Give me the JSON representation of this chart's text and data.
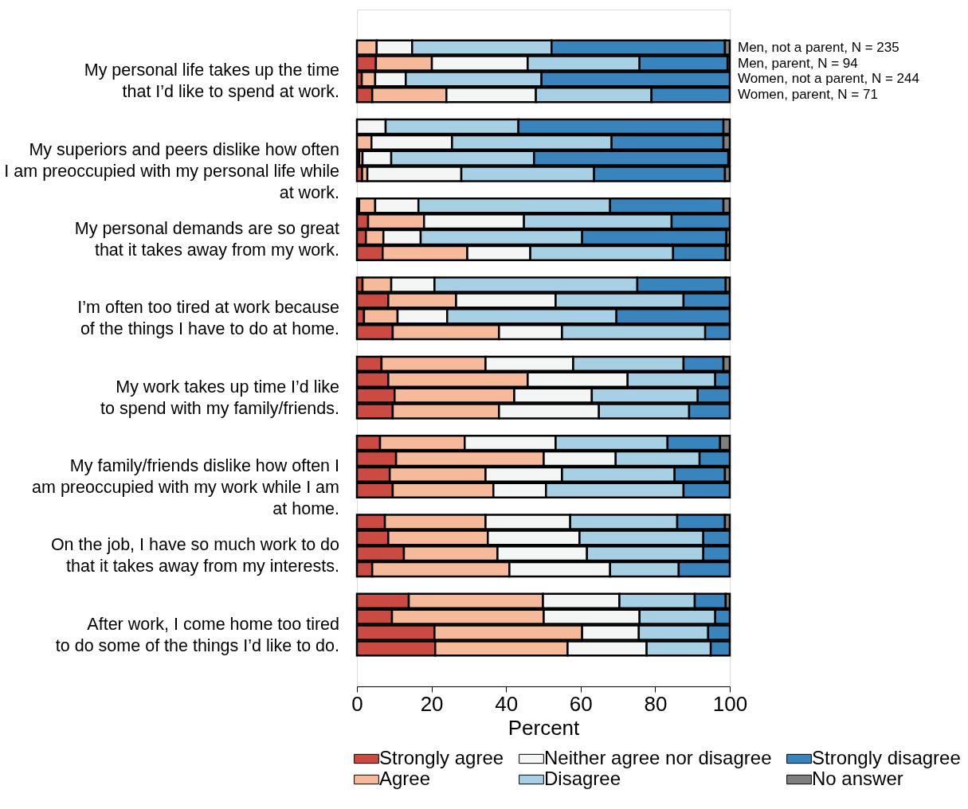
{
  "chart_data": {
    "type": "bar",
    "orientation": "horizontal",
    "stacked": true,
    "categories": [
      null,
      null,
      null,
      null,
      null,
      null,
      null,
      null,
      null,
      null,
      null,
      null,
      null,
      null,
      null,
      null,
      null,
      null,
      null,
      null,
      null,
      null,
      null,
      null,
      null,
      null,
      null,
      null,
      null,
      null,
      null,
      null
    ],
    "series": [
      {
        "name": "Strongly agree",
        "color": "#cb4a42",
        "values": [
          0,
          5.1,
          1.3,
          4.1,
          0,
          0,
          0.6,
          1.4,
          0.6,
          3,
          2.4,
          6.9,
          1.5,
          8.4,
          1.9,
          9.6,
          6.6,
          8.4,
          10.1,
          9.6,
          6.2,
          10.5,
          8.8,
          9.6,
          7.5,
          8.4,
          12.6,
          4.1,
          13.9,
          9.4,
          20.8,
          21
        ]
      },
      {
        "name": "Agree",
        "color": "#f6b99a",
        "values": [
          5.3,
          15,
          3.6,
          19.9,
          0,
          3.9,
          0.9,
          1.4,
          4.3,
          15,
          4.7,
          22.7,
          7.7,
          18.2,
          9,
          28.5,
          27.9,
          37.4,
          32.1,
          28.5,
          22.7,
          39.6,
          25.7,
          27,
          27,
          26.7,
          25.1,
          36.8,
          36,
          40.7,
          39.6,
          35.5
        ]
      },
      {
        "name": "Neither agree nor disagree",
        "color": "#f4f6f5",
        "values": [
          9.5,
          25.7,
          8.2,
          24,
          7.7,
          21.6,
          7.7,
          25.2,
          11.6,
          26.8,
          10,
          16.9,
          11.6,
          26.7,
          13.3,
          16.9,
          23.5,
          26.8,
          20.8,
          26.8,
          24.4,
          19.3,
          20.5,
          14.1,
          22.7,
          24.6,
          24,
          27,
          20.5,
          25.7,
          15.2,
          21.2
        ]
      },
      {
        "name": "Disagree",
        "color": "#a8d0e4",
        "values": [
          37.4,
          30,
          36.4,
          31,
          35.6,
          42.8,
          38.3,
          35.6,
          51.4,
          39.6,
          43.3,
          38.3,
          54.4,
          34.3,
          45.4,
          38.4,
          29.6,
          23.5,
          28.4,
          24.2,
          30,
          22.5,
          30.2,
          36.9,
          28.7,
          33.2,
          31.2,
          18.4,
          20.2,
          20.3,
          18.6,
          17.2
        ]
      },
      {
        "name": "Strongly disagree",
        "color": "#3a84bd",
        "values": [
          46.5,
          23.6,
          50.5,
          21,
          55,
          30,
          52.1,
          35.1,
          30.4,
          15.6,
          38.7,
          14.1,
          23.7,
          12.4,
          30.4,
          6.6,
          10.7,
          3.9,
          8.6,
          10.9,
          14.1,
          8.1,
          13.5,
          12.4,
          12.8,
          7.1,
          7.1,
          13.7,
          8.3,
          3.9,
          5.8,
          5.1
        ]
      },
      {
        "name": "No answer",
        "color": "#7f7f7f",
        "values": [
          1.3,
          0.6,
          0,
          0,
          1.7,
          1.7,
          0.4,
          1.3,
          1.7,
          0,
          0.9,
          1.1,
          1.1,
          0,
          0,
          0,
          1.7,
          0,
          0,
          0,
          2.6,
          0,
          1.3,
          0,
          1.3,
          0,
          0,
          0,
          1.1,
          0,
          0,
          0
        ]
      }
    ],
    "xlim": [
      0,
      100
    ],
    "xticks": [
      0,
      20,
      40,
      60,
      80,
      100
    ],
    "xlabel": "Percent",
    "grid": false,
    "legend": "bottom",
    "annotations": [
      "Men, not a parent, N = 235",
      "Men, parent, N = 94",
      "Women, not a parent, N = 244",
      "Women, parent, N = 71",
      "My personal life takes up the time\nthat I’d like to spend at work.",
      "My superiors and peers dislike how often\nI am preoccupied with my personal life while\nat work.",
      "My personal demands are so great\nthat it takes away from my work.",
      "I’m often too tired at work because\nof the things I have to do at home.",
      "My work takes up time I’d like\nto spend with my family/friends.",
      "My family/friends dislike how often I\nam preoccupied with my work while I am\nat home.",
      "On the job, I have so much work to do\nthat it takes away from my interests.",
      "After work, I come home too tired\nto do some of the things I’d like to do."
    ]
  }
}
